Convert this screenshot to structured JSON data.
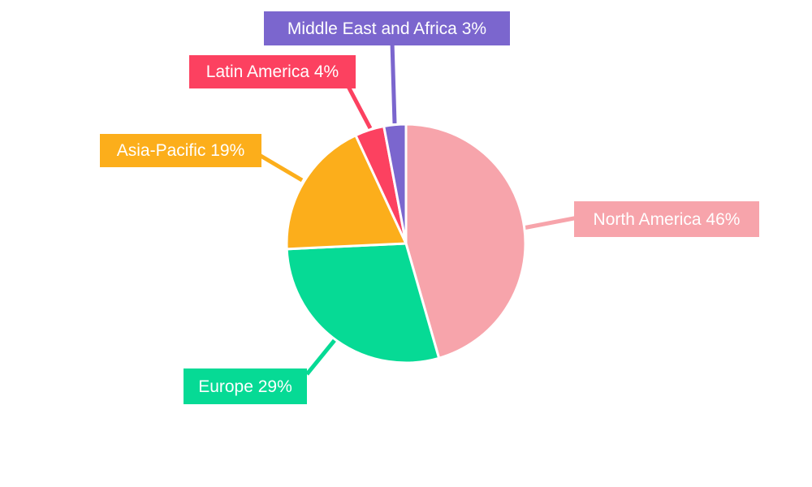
{
  "chart_data": {
    "type": "pie",
    "title": "",
    "unit": "%",
    "legend_position": "external-callout-labels",
    "background": "#FFFFFF",
    "label_text_color": "#FFFFFF",
    "categories": [
      "North America",
      "Europe",
      "Asia-Pacific",
      "Latin America",
      "Middle East and Africa"
    ],
    "values": [
      46,
      29,
      19,
      4,
      3
    ],
    "slices": [
      {
        "label": "North America",
        "value": 46,
        "display": "North America 46%",
        "color": "#F7A4AB"
      },
      {
        "label": "Europe",
        "value": 29,
        "display": "Europe 29%",
        "color": "#06DA95"
      },
      {
        "label": "Asia-Pacific",
        "value": 19,
        "display": "Asia-Pacific 19%",
        "color": "#FCAE1B"
      },
      {
        "label": "Latin America",
        "value": 4,
        "display": "Latin America 4%",
        "color": "#FC4160"
      },
      {
        "label": "Middle East and Africa",
        "value": 3,
        "display": "Middle East and Africa 3%",
        "color": "#7B66CE"
      }
    ]
  }
}
